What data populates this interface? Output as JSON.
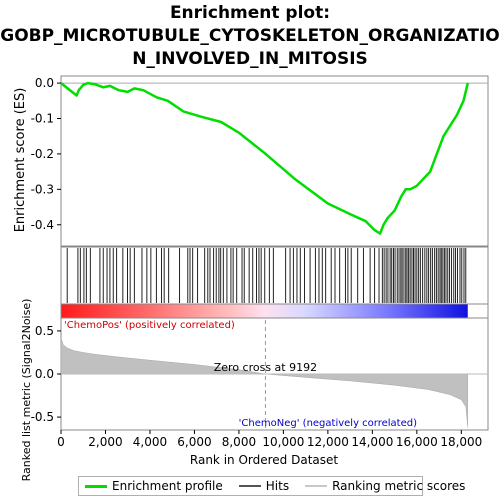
{
  "title_line1": "Enrichment plot:",
  "title_line2": "GOBP_MICROTUBULE_CYTOSKELETON_ORGANIZATIO",
  "title_line3": "N_INVOLVED_IN_MITOSIS",
  "chart_data": {
    "type": "line",
    "top_panel": {
      "ylabel": "Enrichment score (ES)",
      "ylim": [
        -0.46,
        0.02
      ],
      "yticks": [
        "0.0",
        "-0.1",
        "-0.2",
        "-0.3",
        "-0.4"
      ],
      "ytick_values": [
        0.0,
        -0.1,
        -0.2,
        -0.3,
        -0.4
      ],
      "series_name": "Enrichment profile",
      "line_color": "#00dd00",
      "x": [
        0,
        700,
        800,
        1000,
        1200,
        1500,
        1900,
        2200,
        2600,
        3000,
        3300,
        3700,
        4300,
        4800,
        5500,
        6300,
        7200,
        8000,
        9200,
        10500,
        12000,
        13000,
        13700,
        14100,
        14350,
        14500,
        14700,
        15000,
        15300,
        15500,
        15700,
        16000,
        16300,
        16600,
        16900,
        17200,
        17500,
        17800,
        18100,
        18290
      ],
      "y": [
        0.0,
        -0.035,
        -0.02,
        -0.005,
        0.0,
        -0.003,
        -0.012,
        -0.008,
        -0.02,
        -0.025,
        -0.015,
        -0.02,
        -0.04,
        -0.05,
        -0.08,
        -0.095,
        -0.11,
        -0.14,
        -0.2,
        -0.27,
        -0.34,
        -0.37,
        -0.39,
        -0.415,
        -0.425,
        -0.4,
        -0.38,
        -0.36,
        -0.32,
        -0.3,
        -0.3,
        -0.29,
        -0.27,
        -0.25,
        -0.2,
        -0.15,
        -0.12,
        -0.09,
        -0.05,
        0.0
      ]
    },
    "hits": {
      "positions": [
        280,
        760,
        870,
        1030,
        1140,
        1320,
        1750,
        1900,
        2070,
        2200,
        2350,
        2500,
        2780,
        2990,
        3110,
        3300,
        3640,
        3860,
        4040,
        4290,
        4520,
        4640,
        4840,
        5330,
        5700,
        5800,
        5920,
        6140,
        6460,
        6600,
        6700,
        6860,
        6980,
        7100,
        7180,
        7300,
        7460,
        7640,
        7740,
        7900,
        8140,
        8240,
        8460,
        8620,
        8790,
        8900,
        9000,
        9160,
        9370,
        9550,
        10100,
        10300,
        10450,
        10610,
        10760,
        10950,
        11200,
        11440,
        11600,
        11750,
        11900,
        12150,
        12320,
        12530,
        12790,
        12900,
        13050,
        13340,
        13600,
        13900,
        14100,
        14300,
        14450,
        14530,
        14620,
        14700,
        14800,
        14870,
        14950,
        15020,
        15120,
        15200,
        15280,
        15340,
        15420,
        15500,
        15560,
        15630,
        15700,
        15780,
        15850,
        15920,
        16000,
        16080,
        16160,
        16260,
        16360,
        16450,
        16530,
        16620,
        16700,
        16800,
        16880,
        16960,
        17040,
        17100,
        17170,
        17240,
        17310,
        17390,
        17470,
        17560,
        17660,
        17740,
        17830,
        17940,
        18020,
        18120,
        18200
      ]
    },
    "ranking": {
      "ylabel": "Ranked list metric (Signal2Noise)",
      "ylim": [
        -0.65,
        0.65
      ],
      "yticks": [
        "0.5",
        "0.0",
        "-0.5"
      ],
      "ytick_values": [
        0.5,
        0.0,
        -0.5
      ],
      "fill_color": "#c0c0c0",
      "x": [
        0,
        100,
        300,
        600,
        1000,
        1500,
        2500,
        4000,
        6000,
        8000,
        9192,
        11000,
        13000,
        15000,
        16500,
        17500,
        18000,
        18200,
        18290
      ],
      "y": [
        0.42,
        0.34,
        0.3,
        0.27,
        0.25,
        0.23,
        0.2,
        0.16,
        0.11,
        0.05,
        0.0,
        -0.04,
        -0.08,
        -0.13,
        -0.18,
        -0.24,
        -0.3,
        -0.38,
        -0.62
      ],
      "zero_cross_label": "Zero cross at 9192",
      "zero_cross": 9192,
      "pos_label": "'ChemoPos' (positively correlated)",
      "neg_label": "'ChemoNeg' (negatively correlated)"
    },
    "xlabel": "Rank in Ordered Dataset",
    "xlim": [
      0,
      19200
    ],
    "xticks": [
      "0",
      "2,000",
      "4,000",
      "6,000",
      "8,000",
      "10,000",
      "12,000",
      "14,000",
      "16,000",
      "18,000"
    ],
    "xtick_values": [
      0,
      2000,
      4000,
      6000,
      8000,
      10000,
      12000,
      14000,
      16000,
      18000
    ],
    "dataset_size": 18290
  },
  "legend": {
    "profile_label": "Enrichment profile",
    "profile_color": "#00dd00",
    "hits_label": "Hits",
    "hits_color": "#555555",
    "ranking_label": "Ranking metric scores",
    "ranking_color": "#c8c8c8"
  }
}
